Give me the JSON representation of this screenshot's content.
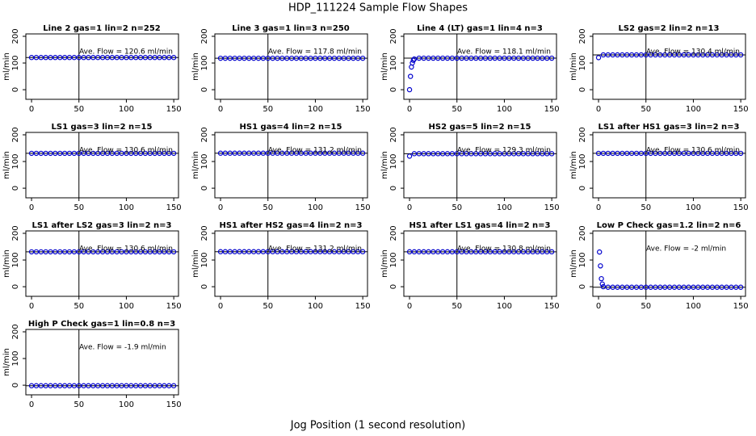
{
  "title": "HDP_111224  Sample Flow Shapes",
  "xlabel": "Jog Position (1 second resolution)",
  "chart_data": [
    {
      "type": "scatter",
      "title": "Line 2 gas=1 lin=2 n=252",
      "ylabel": "ml/min",
      "annotation": "Ave. Flow =  120.6  ml/min",
      "xlim": [
        -6,
        155
      ],
      "ylim": [
        -36,
        209
      ],
      "xticks": [
        0,
        50,
        100,
        150
      ],
      "yticks": [
        0,
        100,
        200
      ],
      "vline": 50,
      "hline": 120.6,
      "color": "#0000cd",
      "x": [
        0,
        5,
        10,
        15,
        20,
        25,
        30,
        35,
        40,
        45,
        50,
        55,
        60,
        65,
        70,
        75,
        80,
        85,
        90,
        95,
        100,
        105,
        110,
        115,
        120,
        125,
        130,
        135,
        140,
        145,
        150
      ],
      "values": [
        120.6,
        120.6,
        120.6,
        120.6,
        120.6,
        120.6,
        120.6,
        120.6,
        120.6,
        120.6,
        120.6,
        120.6,
        120.6,
        120.6,
        120.6,
        120.6,
        120.6,
        120.6,
        120.6,
        120.6,
        120.6,
        120.6,
        120.6,
        120.6,
        120.6,
        120.6,
        120.6,
        120.6,
        120.6,
        120.6,
        120.6
      ]
    },
    {
      "type": "scatter",
      "title": "Line 3 gas=1 lin=3 n=250",
      "ylabel": "ml/min",
      "annotation": "Ave. Flow =  117.8  ml/min",
      "xlim": [
        -6,
        155
      ],
      "ylim": [
        -36,
        209
      ],
      "xticks": [
        0,
        50,
        100,
        150
      ],
      "yticks": [
        0,
        100,
        200
      ],
      "vline": 50,
      "hline": 117.8,
      "color": "#0000cd",
      "x": [
        0,
        5,
        10,
        15,
        20,
        25,
        30,
        35,
        40,
        45,
        50,
        55,
        60,
        65,
        70,
        75,
        80,
        85,
        90,
        95,
        100,
        105,
        110,
        115,
        120,
        125,
        130,
        135,
        140,
        145,
        150
      ],
      "values": [
        117.8,
        117.8,
        117.8,
        117.8,
        117.8,
        117.8,
        117.8,
        117.8,
        117.8,
        117.8,
        117.8,
        117.8,
        117.8,
        117.8,
        117.8,
        117.8,
        117.8,
        117.8,
        117.8,
        117.8,
        117.8,
        117.8,
        117.8,
        117.8,
        117.8,
        117.8,
        117.8,
        117.8,
        117.8,
        117.8,
        117.8
      ]
    },
    {
      "type": "scatter",
      "title": "Line 4 (LT) gas=1 lin=4 n=3",
      "ylabel": "ml/min",
      "annotation": "Ave. Flow =  118.1  ml/min",
      "xlim": [
        -6,
        155
      ],
      "ylim": [
        -36,
        209
      ],
      "xticks": [
        0,
        50,
        100,
        150
      ],
      "yticks": [
        0,
        100,
        200
      ],
      "vline": 50,
      "hline": 118.1,
      "color": "#0000cd",
      "x": [
        0,
        1,
        2,
        3,
        4,
        5,
        10,
        15,
        20,
        25,
        30,
        35,
        40,
        45,
        50,
        55,
        60,
        65,
        70,
        75,
        80,
        85,
        90,
        95,
        100,
        105,
        110,
        115,
        120,
        125,
        130,
        135,
        140,
        145,
        150
      ],
      "values": [
        0,
        50,
        85,
        100,
        110,
        115,
        118.1,
        118.1,
        118.1,
        118.1,
        118.1,
        118.1,
        118.1,
        118.1,
        118.1,
        118.1,
        118.1,
        118.1,
        118.1,
        118.1,
        118.1,
        118.1,
        118.1,
        118.1,
        118.1,
        118.1,
        118.1,
        118.1,
        118.1,
        118.1,
        118.1,
        118.1,
        118.1,
        118.1,
        118.1
      ]
    },
    {
      "type": "scatter",
      "title": "LS2 gas=2 lin=2 n=13",
      "ylabel": "ml/min",
      "annotation": "Ave. Flow =  130.4  ml/min",
      "xlim": [
        -6,
        155
      ],
      "ylim": [
        -36,
        209
      ],
      "xticks": [
        0,
        50,
        100,
        150
      ],
      "yticks": [
        0,
        100,
        200
      ],
      "vline": 50,
      "hline": 130.4,
      "color": "#0000cd",
      "x": [
        0,
        5,
        10,
        15,
        20,
        25,
        30,
        35,
        40,
        45,
        50,
        55,
        60,
        65,
        70,
        75,
        80,
        85,
        90,
        95,
        100,
        105,
        110,
        115,
        120,
        125,
        130,
        135,
        140,
        145,
        150
      ],
      "values": [
        120,
        130.4,
        130.4,
        130.4,
        130.4,
        130.4,
        130.4,
        130.4,
        130.4,
        130.4,
        130.4,
        130.4,
        130.4,
        130.4,
        130.4,
        130.4,
        130.4,
        130.4,
        130.4,
        130.4,
        130.4,
        130.4,
        130.4,
        130.4,
        130.4,
        130.4,
        130.4,
        130.4,
        130.4,
        130.4,
        130.4
      ]
    },
    {
      "type": "scatter",
      "title": "LS1 gas=3 lin=2 n=15",
      "ylabel": "ml/min",
      "annotation": "Ave. Flow =  130.6  ml/min",
      "xlim": [
        -6,
        155
      ],
      "ylim": [
        -36,
        209
      ],
      "xticks": [
        0,
        50,
        100,
        150
      ],
      "yticks": [
        0,
        100,
        200
      ],
      "vline": 50,
      "hline": 130.6,
      "color": "#0000cd",
      "x": [
        0,
        5,
        10,
        15,
        20,
        25,
        30,
        35,
        40,
        45,
        50,
        55,
        60,
        65,
        70,
        75,
        80,
        85,
        90,
        95,
        100,
        105,
        110,
        115,
        120,
        125,
        130,
        135,
        140,
        145,
        150
      ],
      "values": [
        130.6,
        130.6,
        130.6,
        130.6,
        130.6,
        130.6,
        130.6,
        130.6,
        130.6,
        130.6,
        130.6,
        130.6,
        130.6,
        130.6,
        130.6,
        130.6,
        130.6,
        130.6,
        130.6,
        130.6,
        130.6,
        130.6,
        130.6,
        130.6,
        130.6,
        130.6,
        130.6,
        130.6,
        130.6,
        130.6,
        130.6
      ]
    },
    {
      "type": "scatter",
      "title": "HS1 gas=4 lin=2 n=15",
      "ylabel": "ml/min",
      "annotation": "Ave. Flow =  131.2  ml/min",
      "xlim": [
        -6,
        155
      ],
      "ylim": [
        -36,
        209
      ],
      "xticks": [
        0,
        50,
        100,
        150
      ],
      "yticks": [
        0,
        100,
        200
      ],
      "vline": 50,
      "hline": 131.2,
      "color": "#0000cd",
      "x": [
        0,
        5,
        10,
        15,
        20,
        25,
        30,
        35,
        40,
        45,
        50,
        55,
        60,
        65,
        70,
        75,
        80,
        85,
        90,
        95,
        100,
        105,
        110,
        115,
        120,
        125,
        130,
        135,
        140,
        145,
        150
      ],
      "values": [
        131.2,
        131.2,
        131.2,
        131.2,
        131.2,
        131.2,
        131.2,
        131.2,
        131.2,
        131.2,
        131.2,
        131.2,
        131.2,
        131.2,
        131.2,
        131.2,
        131.2,
        131.2,
        131.2,
        131.2,
        131.2,
        131.2,
        131.2,
        131.2,
        131.2,
        131.2,
        131.2,
        131.2,
        131.2,
        131.2,
        131.2
      ]
    },
    {
      "type": "scatter",
      "title": "HS2 gas=5 lin=2 n=15",
      "ylabel": "ml/min",
      "annotation": "Ave. Flow =  129.3  ml/min",
      "xlim": [
        -6,
        155
      ],
      "ylim": [
        -36,
        209
      ],
      "xticks": [
        0,
        50,
        100,
        150
      ],
      "yticks": [
        0,
        100,
        200
      ],
      "vline": 50,
      "hline": 129.3,
      "color": "#0000cd",
      "x": [
        0,
        5,
        10,
        15,
        20,
        25,
        30,
        35,
        40,
        45,
        50,
        55,
        60,
        65,
        70,
        75,
        80,
        85,
        90,
        95,
        100,
        105,
        110,
        115,
        120,
        125,
        130,
        135,
        140,
        145,
        150
      ],
      "values": [
        120,
        129.3,
        129.3,
        129.3,
        129.3,
        129.3,
        129.3,
        129.3,
        129.3,
        129.3,
        129.3,
        129.3,
        129.3,
        129.3,
        129.3,
        129.3,
        129.3,
        129.3,
        129.3,
        129.3,
        129.3,
        129.3,
        129.3,
        129.3,
        129.3,
        129.3,
        129.3,
        129.3,
        129.3,
        129.3,
        129.3
      ]
    },
    {
      "type": "scatter",
      "title": "LS1 after HS1 gas=3 lin=2 n=3",
      "ylabel": "ml/min",
      "annotation": "Ave. Flow =  130.6  ml/min",
      "xlim": [
        -6,
        155
      ],
      "ylim": [
        -36,
        209
      ],
      "xticks": [
        0,
        50,
        100,
        150
      ],
      "yticks": [
        0,
        100,
        200
      ],
      "vline": 50,
      "hline": 130.6,
      "color": "#0000cd",
      "x": [
        0,
        5,
        10,
        15,
        20,
        25,
        30,
        35,
        40,
        45,
        50,
        55,
        60,
        65,
        70,
        75,
        80,
        85,
        90,
        95,
        100,
        105,
        110,
        115,
        120,
        125,
        130,
        135,
        140,
        145,
        150
      ],
      "values": [
        130.6,
        130.6,
        130.6,
        130.6,
        130.6,
        130.6,
        130.6,
        130.6,
        130.6,
        130.6,
        130.6,
        130.6,
        130.6,
        130.6,
        130.6,
        130.6,
        130.6,
        130.6,
        130.6,
        130.6,
        130.6,
        130.6,
        130.6,
        130.6,
        130.6,
        130.6,
        130.6,
        130.6,
        130.6,
        130.6,
        130.6
      ]
    },
    {
      "type": "scatter",
      "title": "LS1 after LS2 gas=3 lin=2 n=3",
      "ylabel": "ml/min",
      "annotation": "Ave. Flow =  130.6  ml/min",
      "xlim": [
        -6,
        155
      ],
      "ylim": [
        -36,
        209
      ],
      "xticks": [
        0,
        50,
        100,
        150
      ],
      "yticks": [
        0,
        100,
        200
      ],
      "vline": 50,
      "hline": 130.6,
      "color": "#0000cd",
      "x": [
        0,
        5,
        10,
        15,
        20,
        25,
        30,
        35,
        40,
        45,
        50,
        55,
        60,
        65,
        70,
        75,
        80,
        85,
        90,
        95,
        100,
        105,
        110,
        115,
        120,
        125,
        130,
        135,
        140,
        145,
        150
      ],
      "values": [
        130.6,
        130.6,
        130.6,
        130.6,
        130.6,
        130.6,
        130.6,
        130.6,
        130.6,
        130.6,
        130.6,
        130.6,
        130.6,
        130.6,
        130.6,
        130.6,
        130.6,
        130.6,
        130.6,
        130.6,
        130.6,
        130.6,
        130.6,
        130.6,
        130.6,
        130.6,
        130.6,
        130.6,
        130.6,
        130.6,
        130.6
      ]
    },
    {
      "type": "scatter",
      "title": "HS1 after HS2 gas=4 lin=2 n=3",
      "ylabel": "ml/min",
      "annotation": "Ave. Flow =  131.2  ml/min",
      "xlim": [
        -6,
        155
      ],
      "ylim": [
        -36,
        209
      ],
      "xticks": [
        0,
        50,
        100,
        150
      ],
      "yticks": [
        0,
        100,
        200
      ],
      "vline": 50,
      "hline": 131.2,
      "color": "#0000cd",
      "x": [
        0,
        5,
        10,
        15,
        20,
        25,
        30,
        35,
        40,
        45,
        50,
        55,
        60,
        65,
        70,
        75,
        80,
        85,
        90,
        95,
        100,
        105,
        110,
        115,
        120,
        125,
        130,
        135,
        140,
        145,
        150
      ],
      "values": [
        131.2,
        131.2,
        131.2,
        131.2,
        131.2,
        131.2,
        131.2,
        131.2,
        131.2,
        131.2,
        131.2,
        131.2,
        131.2,
        131.2,
        131.2,
        131.2,
        131.2,
        131.2,
        131.2,
        131.2,
        131.2,
        131.2,
        131.2,
        131.2,
        131.2,
        131.2,
        131.2,
        131.2,
        131.2,
        131.2,
        131.2
      ]
    },
    {
      "type": "scatter",
      "title": "HS1 after LS1 gas=4 lin=2 n=3",
      "ylabel": "ml/min",
      "annotation": "Ave. Flow =  130.8  ml/min",
      "xlim": [
        -6,
        155
      ],
      "ylim": [
        -36,
        209
      ],
      "xticks": [
        0,
        50,
        100,
        150
      ],
      "yticks": [
        0,
        100,
        200
      ],
      "vline": 50,
      "hline": 130.8,
      "color": "#0000cd",
      "x": [
        0,
        5,
        10,
        15,
        20,
        25,
        30,
        35,
        40,
        45,
        50,
        55,
        60,
        65,
        70,
        75,
        80,
        85,
        90,
        95,
        100,
        105,
        110,
        115,
        120,
        125,
        130,
        135,
        140,
        145,
        150
      ],
      "values": [
        130.8,
        130.8,
        130.8,
        130.8,
        130.8,
        130.8,
        130.8,
        130.8,
        130.8,
        130.8,
        130.8,
        130.8,
        130.8,
        130.8,
        130.8,
        130.8,
        130.8,
        130.8,
        130.8,
        130.8,
        130.8,
        130.8,
        130.8,
        130.8,
        130.8,
        130.8,
        130.8,
        130.8,
        130.8,
        130.8,
        130.8
      ]
    },
    {
      "type": "scatter",
      "title": "Low P Check gas=1.2 lin=2 n=6",
      "ylabel": "ml/min",
      "annotation": "Ave. Flow =  -2  ml/min",
      "xlim": [
        -6,
        155
      ],
      "ylim": [
        -36,
        209
      ],
      "xticks": [
        0,
        50,
        100,
        150
      ],
      "yticks": [
        0,
        100,
        200
      ],
      "vline": 50,
      "hline": -2,
      "color": "#0000cd",
      "x": [
        1,
        2,
        3,
        4,
        5,
        10,
        15,
        20,
        25,
        30,
        35,
        40,
        45,
        50,
        55,
        60,
        65,
        70,
        75,
        80,
        85,
        90,
        95,
        100,
        105,
        110,
        115,
        120,
        125,
        130,
        135,
        140,
        145,
        150
      ],
      "values": [
        130,
        78,
        30,
        10,
        0,
        -2,
        -2,
        -2,
        -2,
        -2,
        -2,
        -2,
        -2,
        -2,
        -2,
        -2,
        -2,
        -2,
        -2,
        -2,
        -2,
        -2,
        -2,
        -2,
        -2,
        -2,
        -2,
        -2,
        -2,
        -2,
        -2,
        -2,
        -2,
        -2
      ]
    },
    {
      "type": "scatter",
      "title": "High P Check gas=1 lin=0.8 n=3",
      "ylabel": "ml/min",
      "annotation": "Ave. Flow =  -1.9  ml/min",
      "xlim": [
        -6,
        155
      ],
      "ylim": [
        -36,
        209
      ],
      "xticks": [
        0,
        50,
        100,
        150
      ],
      "yticks": [
        0,
        100,
        200
      ],
      "vline": 50,
      "hline": -1.9,
      "color": "#0000cd",
      "x": [
        0,
        5,
        10,
        15,
        20,
        25,
        30,
        35,
        40,
        45,
        50,
        55,
        60,
        65,
        70,
        75,
        80,
        85,
        90,
        95,
        100,
        105,
        110,
        115,
        120,
        125,
        130,
        135,
        140,
        145,
        150
      ],
      "values": [
        -1.9,
        -1.9,
        -1.9,
        -1.9,
        -1.9,
        -1.9,
        -1.9,
        -1.9,
        -1.9,
        -1.9,
        -1.9,
        -1.9,
        -1.9,
        -1.9,
        -1.9,
        -1.9,
        -1.9,
        -1.9,
        -1.9,
        -1.9,
        -1.9,
        -1.9,
        -1.9,
        -1.9,
        -1.9,
        -1.9,
        -1.9,
        -1.9,
        -1.9,
        -1.9,
        -1.9
      ]
    }
  ]
}
